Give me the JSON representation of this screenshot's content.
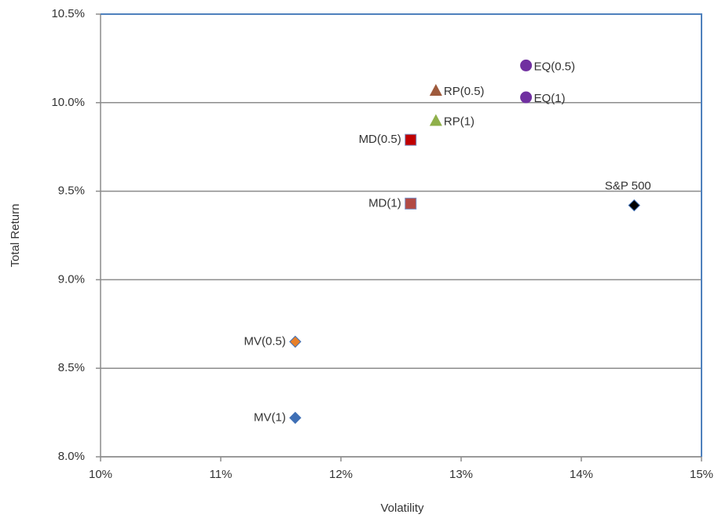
{
  "chart_data": {
    "type": "scatter",
    "x_label": "Volatility",
    "y_label": "Total Return",
    "xlim": [
      10,
      15
    ],
    "xticks": [
      {
        "value": 10,
        "label": "10%"
      },
      {
        "value": 11,
        "label": "11%"
      },
      {
        "value": 12,
        "label": "12%"
      },
      {
        "value": 13,
        "label": "13%"
      },
      {
        "value": 14,
        "label": "14%"
      },
      {
        "value": 15,
        "label": "15%"
      }
    ],
    "ylim": [
      8.0,
      10.5
    ],
    "yticks": [
      {
        "value": 8.0,
        "label": "8.0%"
      },
      {
        "value": 8.5,
        "label": "8.5%"
      },
      {
        "value": 9.0,
        "label": "9.0%"
      },
      {
        "value": 9.5,
        "label": "9.5%"
      },
      {
        "value": 10.0,
        "label": "10.0%"
      },
      {
        "value": 10.5,
        "label": "10.5%"
      }
    ],
    "grid": true,
    "series": [
      {
        "name": "EQ(0.5)",
        "x": [
          13.54
        ],
        "values": [
          10.21
        ],
        "color": "#7030a0",
        "marker": "circle",
        "label_side": "right"
      },
      {
        "name": "EQ(1)",
        "x": [
          13.54
        ],
        "values": [
          10.03
        ],
        "color": "#7030a0",
        "marker": "circle",
        "label_side": "right"
      },
      {
        "name": "RP(0.5)",
        "x": [
          12.79
        ],
        "values": [
          10.07
        ],
        "color": "#9e5a3c",
        "marker": "triangle",
        "label_side": "right"
      },
      {
        "name": "RP(1)",
        "x": [
          12.79
        ],
        "values": [
          9.9
        ],
        "color": "#8fb04a",
        "marker": "triangle",
        "label_side": "right"
      },
      {
        "name": "MD(0.5)",
        "x": [
          12.58
        ],
        "values": [
          9.79
        ],
        "color": "#c00000",
        "marker": "square",
        "label_side": "left"
      },
      {
        "name": "MD(1)",
        "x": [
          12.58
        ],
        "values": [
          9.43
        ],
        "color": "#b24a45",
        "marker": "square",
        "label_side": "left"
      },
      {
        "name": "S&P 500",
        "x": [
          14.44
        ],
        "values": [
          9.42
        ],
        "color": "#000000",
        "marker": "diamond",
        "label_side": "above"
      },
      {
        "name": "MV(0.5)",
        "x": [
          11.62
        ],
        "values": [
          8.65
        ],
        "color": "#e8802a",
        "marker": "diamond",
        "label_side": "left"
      },
      {
        "name": "MV(1)",
        "x": [
          11.62
        ],
        "values": [
          8.22
        ],
        "color": "#3f6fb5",
        "marker": "diamond",
        "label_side": "left"
      }
    ]
  }
}
